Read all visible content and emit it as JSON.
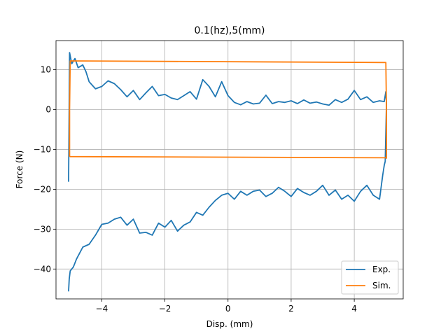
{
  "chart_data": {
    "type": "line",
    "title": "0.1(hz),5(mm)",
    "xlabel": "Disp. (mm)",
    "ylabel": "Force (N)",
    "xlim": [
      -5.45,
      5.55
    ],
    "ylim": [
      -47.5,
      17.3
    ],
    "xticks": [
      -4,
      -2,
      0,
      2,
      4
    ],
    "yticks": [
      -40,
      -30,
      -20,
      -10,
      0,
      10
    ],
    "xtick_labels": [
      "−4",
      "−2",
      "0",
      "2",
      "4"
    ],
    "ytick_labels": [
      "−40",
      "−30",
      "−20",
      "−10",
      "0",
      "10"
    ],
    "grid": true,
    "legend": "lower-right",
    "series": [
      {
        "name": "Exp.",
        "color": "#1f77b4",
        "x": [
          -5.05,
          -5.02,
          -4.95,
          -4.85,
          -4.75,
          -4.6,
          -4.5,
          -4.4,
          -4.2,
          -4.0,
          -3.8,
          -3.6,
          -3.4,
          -3.2,
          -3.0,
          -2.8,
          -2.6,
          -2.4,
          -2.2,
          -2.0,
          -1.8,
          -1.6,
          -1.4,
          -1.2,
          -1.0,
          -0.8,
          -0.6,
          -0.4,
          -0.2,
          0.0,
          0.2,
          0.4,
          0.6,
          0.8,
          1.0,
          1.2,
          1.4,
          1.6,
          1.8,
          2.0,
          2.2,
          2.4,
          2.6,
          2.8,
          3.0,
          3.2,
          3.4,
          3.6,
          3.8,
          4.0,
          4.2,
          4.4,
          4.6,
          4.8,
          4.95,
          5.0,
          5.02,
          4.98,
          4.95,
          4.9,
          4.8,
          4.6,
          4.4,
          4.2,
          4.0,
          3.8,
          3.6,
          3.4,
          3.2,
          3.0,
          2.8,
          2.6,
          2.4,
          2.2,
          2.0,
          1.8,
          1.6,
          1.4,
          1.2,
          1.0,
          0.8,
          0.6,
          0.4,
          0.2,
          0.0,
          -0.2,
          -0.4,
          -0.6,
          -0.8,
          -1.0,
          -1.2,
          -1.4,
          -1.6,
          -1.8,
          -2.0,
          -2.2,
          -2.4,
          -2.6,
          -2.8,
          -3.0,
          -3.2,
          -3.4,
          -3.6,
          -3.8,
          -4.0,
          -4.2,
          -4.4,
          -4.6,
          -4.8,
          -4.9,
          -5.0,
          -5.03,
          -5.05
        ],
        "y": [
          -18,
          14.3,
          11.5,
          12.8,
          10.5,
          11.2,
          9.5,
          7.0,
          5.2,
          5.8,
          7.2,
          6.5,
          5.0,
          3.2,
          4.8,
          2.5,
          4.2,
          5.8,
          3.5,
          3.8,
          2.9,
          2.5,
          3.5,
          4.5,
          2.6,
          7.5,
          5.8,
          3.2,
          7.0,
          3.5,
          1.8,
          1.2,
          2.0,
          1.4,
          1.6,
          3.6,
          1.5,
          2.0,
          1.8,
          2.2,
          1.5,
          2.4,
          1.6,
          1.9,
          1.4,
          1.1,
          2.5,
          1.8,
          2.6,
          4.8,
          2.5,
          3.2,
          1.8,
          2.2,
          2.0,
          4.5,
          1.5,
          -13.0,
          -14.0,
          -16.5,
          -22.5,
          -21.5,
          -19.0,
          -20.5,
          -23.0,
          -21.5,
          -22.5,
          -20.2,
          -21.5,
          -19.0,
          -20.5,
          -21.5,
          -20.8,
          -19.8,
          -21.8,
          -20.5,
          -19.5,
          -21.0,
          -21.8,
          -20.2,
          -20.5,
          -21.5,
          -20.5,
          -22.5,
          -21.0,
          -21.5,
          -22.8,
          -24.5,
          -26.5,
          -25.8,
          -28.2,
          -29.0,
          -30.5,
          -27.8,
          -29.5,
          -28.5,
          -31.5,
          -30.8,
          -31.0,
          -27.5,
          -29.0,
          -27.0,
          -27.5,
          -28.5,
          -28.8,
          -31.5,
          -33.8,
          -34.5,
          -37.5,
          -39.5,
          -40.5,
          -42.5,
          -45.5
        ]
      },
      {
        "name": "Sim.",
        "color": "#ff7f0e",
        "x": [
          -5.02,
          -5.0,
          5.0,
          5.02,
          5.02,
          5.0,
          -5.0,
          -5.02,
          -5.02
        ],
        "y": [
          0.0,
          12.2,
          11.8,
          0.0,
          -12.2,
          -12.1,
          -11.8,
          -11.7,
          0.0
        ]
      }
    ]
  }
}
